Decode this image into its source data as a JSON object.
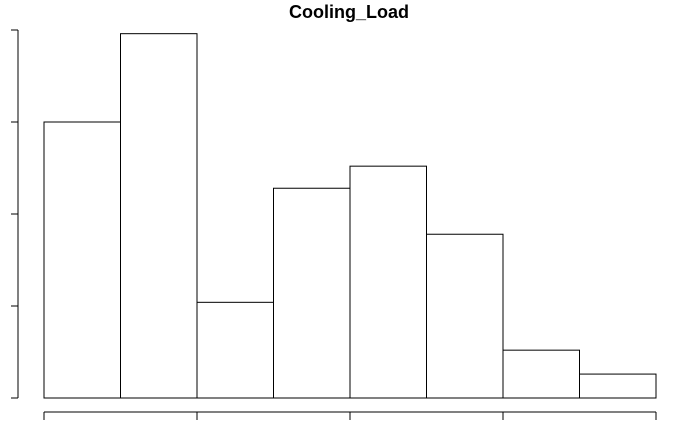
{
  "chart_data": {
    "type": "bar",
    "title": "Cooling_Load",
    "xlabel": "",
    "ylabel": "",
    "bins": [
      {
        "value": 150
      },
      {
        "value": 198
      },
      {
        "value": 52
      },
      {
        "value": 114
      },
      {
        "value": 126
      },
      {
        "value": 89
      },
      {
        "value": 26
      },
      {
        "value": 13
      }
    ],
    "ylim": [
      0,
      200
    ],
    "y_ticks": [
      0,
      50,
      100,
      150,
      200
    ],
    "x_ticks_count": 5,
    "grid": false,
    "colors": {
      "bar_fill": "#ffffff",
      "bar_stroke": "#000000"
    }
  }
}
